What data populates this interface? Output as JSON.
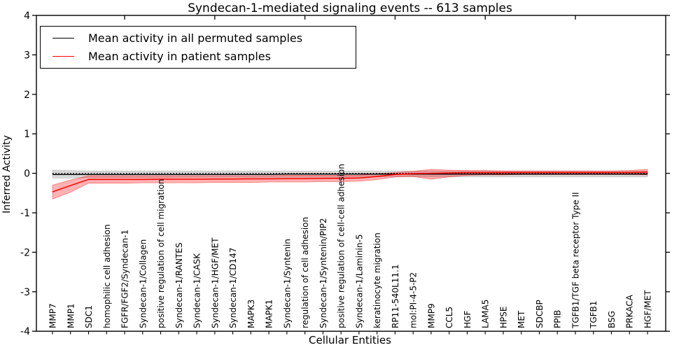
{
  "figure": {
    "title": "Syndecan-1-mediated signaling events -- 613 samples",
    "xlabel": "Cellular Entities",
    "ylabel": "Inferred Activity"
  },
  "legend": {
    "entries": [
      {
        "label": "Mean activity in all permuted samples",
        "color": "#000000"
      },
      {
        "label": "Mean activity in patient samples",
        "color": "#ff0000"
      }
    ]
  },
  "chart_data": {
    "type": "line",
    "title": "Syndecan-1-mediated signaling events -- 613 samples",
    "xlabel": "Cellular Entities",
    "ylabel": "Inferred Activity",
    "ylim": [
      -4,
      4
    ],
    "yticks": [
      -4,
      -3,
      -2,
      -1,
      0,
      1,
      2,
      3,
      4
    ],
    "grid": false,
    "legend_position": "upper left",
    "zero_line": {
      "y": 0,
      "style": "dotted",
      "color": "#000000"
    },
    "band_colors": {
      "permuted": "rgba(0,0,0,0.15)",
      "patient": "rgba(255,0,0,0.30)"
    },
    "categories": [
      "MMP7",
      "MMP1",
      "SDC1",
      "homophilic cell adhesion",
      "FGFR/FGF2/Syndecan-1",
      "Syndecan-1/Collagen",
      "positive regulation of cell migration",
      "Syndecan-1/RANTES",
      "Syndecan-1/CASK",
      "Syndecan-1/HGF/MET",
      "Syndecan-1/CD147",
      "MAPK3",
      "MAPK1",
      "Syndecan-1/Syntenin",
      "regulation of cell adhesion",
      "Syndecan-1/Syntenin/PIP2",
      "positive regulation of cell-cell adhesion",
      "Syndecan-1/Laminin-5",
      "keratinocyte migration",
      "RP11-540L11.1",
      "mol:PI-4-5-P2",
      "MMP9",
      "CCL5",
      "HGF",
      "LAMA5",
      "HPSE",
      "MET",
      "SDCBP",
      "PPIB",
      "TGFB1/TGF beta receptor Type II",
      "TGFB1",
      "BSG",
      "PRKACA",
      "HGF/MET"
    ],
    "series": [
      {
        "name": "Mean activity in all permuted samples",
        "color": "#000000",
        "values": [
          -0.03,
          -0.03,
          -0.03,
          -0.03,
          -0.03,
          -0.03,
          -0.03,
          -0.03,
          -0.03,
          -0.03,
          -0.03,
          -0.03,
          -0.03,
          -0.02,
          -0.02,
          -0.02,
          -0.02,
          -0.02,
          -0.02,
          -0.02,
          -0.02,
          -0.02,
          -0.02,
          -0.02,
          -0.02,
          -0.02,
          -0.02,
          -0.02,
          -0.02,
          -0.02,
          -0.02,
          -0.02,
          -0.02,
          -0.02
        ],
        "band_upper": [
          0.08,
          0.07,
          0.06,
          0.06,
          0.06,
          0.06,
          0.06,
          0.06,
          0.06,
          0.06,
          0.06,
          0.06,
          0.06,
          0.06,
          0.06,
          0.06,
          0.06,
          0.06,
          0.06,
          0.06,
          0.06,
          0.06,
          0.06,
          0.06,
          0.06,
          0.06,
          0.06,
          0.06,
          0.06,
          0.06,
          0.06,
          0.06,
          0.06,
          0.06
        ],
        "band_lower": [
          -0.12,
          -0.12,
          -0.11,
          -0.11,
          -0.11,
          -0.11,
          -0.11,
          -0.1,
          -0.1,
          -0.1,
          -0.1,
          -0.1,
          -0.1,
          -0.1,
          -0.1,
          -0.1,
          -0.1,
          -0.09,
          -0.09,
          -0.09,
          -0.09,
          -0.09,
          -0.09,
          -0.09,
          -0.09,
          -0.09,
          -0.09,
          -0.09,
          -0.09,
          -0.09,
          -0.09,
          -0.09,
          -0.09,
          -0.09
        ]
      },
      {
        "name": "Mean activity in patient samples",
        "color": "#ff0000",
        "values": [
          -0.47,
          -0.31,
          -0.155,
          -0.155,
          -0.155,
          -0.155,
          -0.15,
          -0.15,
          -0.15,
          -0.145,
          -0.145,
          -0.14,
          -0.14,
          -0.135,
          -0.135,
          -0.13,
          -0.125,
          -0.12,
          -0.08,
          -0.03,
          -0.01,
          0.0,
          0.01,
          0.02,
          0.02,
          0.02,
          0.02,
          0.02,
          0.02,
          0.02,
          0.02,
          0.02,
          0.02,
          0.03
        ],
        "band_upper": [
          -0.3,
          -0.17,
          -0.06,
          -0.06,
          -0.06,
          -0.06,
          -0.06,
          -0.06,
          -0.06,
          -0.06,
          -0.06,
          -0.06,
          -0.06,
          -0.05,
          -0.05,
          -0.05,
          -0.05,
          -0.05,
          -0.01,
          0.02,
          0.05,
          0.1,
          0.08,
          0.07,
          0.07,
          0.06,
          0.06,
          0.06,
          0.06,
          0.06,
          0.06,
          0.06,
          0.07,
          0.1
        ],
        "band_lower": [
          -0.65,
          -0.48,
          -0.25,
          -0.25,
          -0.25,
          -0.24,
          -0.24,
          -0.24,
          -0.24,
          -0.23,
          -0.23,
          -0.23,
          -0.22,
          -0.22,
          -0.22,
          -0.21,
          -0.21,
          -0.2,
          -0.16,
          -0.09,
          -0.08,
          -0.15,
          -0.09,
          -0.05,
          -0.04,
          -0.04,
          -0.03,
          -0.03,
          -0.03,
          -0.03,
          -0.03,
          -0.03,
          -0.03,
          -0.04
        ]
      }
    ],
    "top_tick_positions_1based": [
      5,
      10,
      15,
      20,
      25,
      30
    ]
  }
}
